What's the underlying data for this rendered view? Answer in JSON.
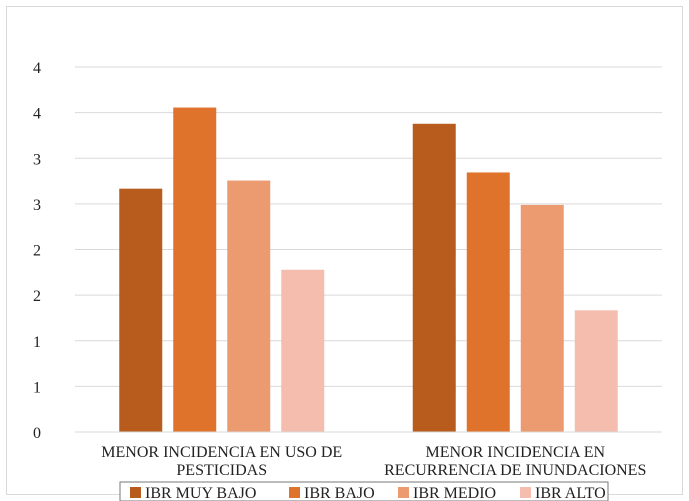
{
  "chart_data": {
    "type": "bar",
    "categories": [
      [
        "MENOR INCIDENCIA EN USO DE",
        "PESTICIDAS"
      ],
      [
        "MENOR INCIDENCIA EN",
        "RECURRENCIA DE INUNDACIONES"
      ]
    ],
    "series": [
      {
        "name": "IBR MUY BAJO",
        "color": "#b85c1e",
        "values": [
          3.0,
          3.8
        ]
      },
      {
        "name": "IBR BAJO",
        "color": "#e0732c",
        "values": [
          4.0,
          3.2
        ]
      },
      {
        "name": "IBR MEDIO",
        "color": "#ec9a70",
        "values": [
          3.1,
          2.8
        ]
      },
      {
        "name": "IBR ALTO",
        "color": "#f4bdad",
        "values": [
          2.0,
          1.5
        ]
      }
    ],
    "y_tick_labels": [
      "0",
      "1",
      "1",
      "2",
      "2",
      "3",
      "3",
      "4",
      "4"
    ],
    "ylim": [
      0,
      4.5
    ],
    "grid": true,
    "legend_position": "bottom",
    "title": "",
    "xlabel": "",
    "ylabel": ""
  }
}
